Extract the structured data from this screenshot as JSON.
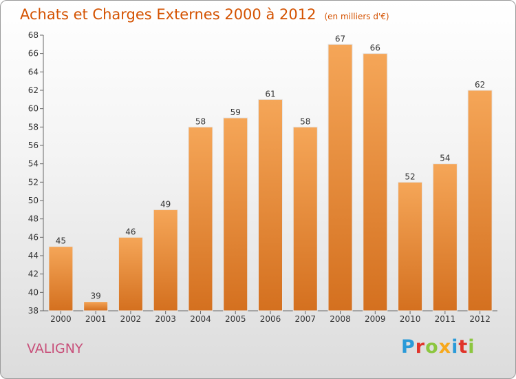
{
  "header": {
    "title": "Achats et Charges Externes 2000 à 2012",
    "unit": "(en milliers d'€)"
  },
  "footer": {
    "commune": "VALIGNY",
    "logo_text": "Proxiti",
    "logo_colors": [
      "#2a9ad8",
      "#e0342a",
      "#8cc63f",
      "#f7a81b",
      "#2a9ad8",
      "#e0342a",
      "#8cc63f"
    ]
  },
  "colors": {
    "bar_top": "#f5a658",
    "bar_bottom": "#d4701f",
    "title": "#d45200",
    "commune": "#c8507a"
  },
  "chart_data": {
    "type": "bar",
    "title": "Achats et Charges Externes 2000 à 2012",
    "subtitle": "(en milliers d'€)",
    "categories": [
      "2000",
      "2001",
      "2002",
      "2003",
      "2004",
      "2005",
      "2006",
      "2007",
      "2008",
      "2009",
      "2010",
      "2011",
      "2012"
    ],
    "values": [
      45,
      39,
      46,
      49,
      58,
      59,
      61,
      58,
      67,
      66,
      52,
      54,
      62
    ],
    "ylim": [
      38,
      68
    ],
    "yticks": [
      38,
      40,
      42,
      44,
      46,
      48,
      50,
      52,
      54,
      56,
      58,
      60,
      62,
      64,
      66,
      68
    ],
    "grid": false,
    "legend": "none"
  }
}
